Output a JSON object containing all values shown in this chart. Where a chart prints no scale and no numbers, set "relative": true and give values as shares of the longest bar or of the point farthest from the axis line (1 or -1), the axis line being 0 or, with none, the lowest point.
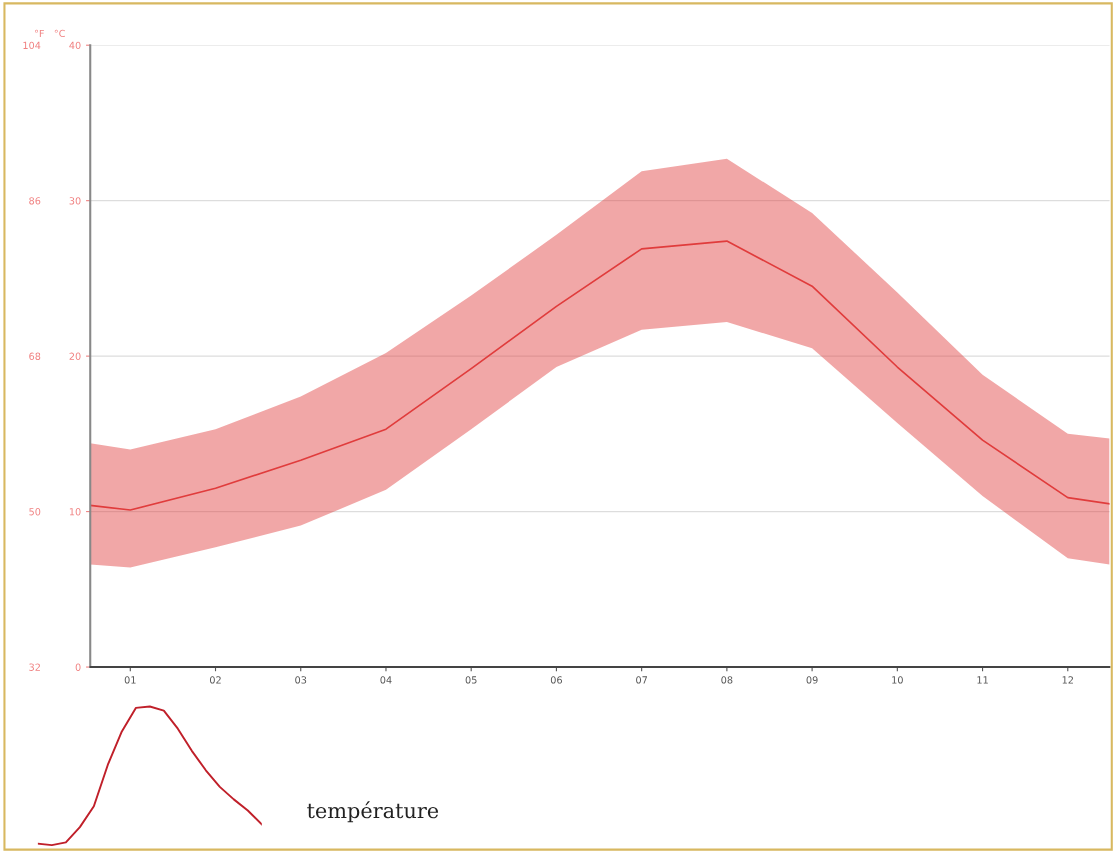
{
  "chart_data": [
    {
      "type": "line",
      "x": [
        0.53,
        1,
        2,
        3,
        4,
        5,
        6,
        7,
        8,
        9,
        10,
        11,
        12,
        12.49
      ],
      "series": [
        {
          "color": "#e03c3c",
          "values": [
            10.4,
            10.1,
            11.5,
            13.3,
            15.3,
            19.2,
            23.2,
            26.9,
            27.4,
            24.5,
            19.3,
            14.6,
            10.9,
            10.5
          ],
          "lower": [
            6.6,
            6.4,
            7.7,
            9.1,
            11.4,
            15.3,
            19.3,
            21.7,
            22.2,
            20.5,
            15.7,
            11.0,
            7.0,
            6.6
          ],
          "upper": [
            14.4,
            14.0,
            15.3,
            17.4,
            20.2,
            23.9,
            27.8,
            31.9,
            32.7,
            29.2,
            24.1,
            18.8,
            15.0,
            14.7
          ]
        }
      ],
      "xlim": [
        0.53,
        12.49
      ],
      "xticks": [
        {
          "value": 1,
          "label": "01"
        },
        {
          "value": 2,
          "label": "02"
        },
        {
          "value": 3,
          "label": "03"
        },
        {
          "value": 4,
          "label": "04"
        },
        {
          "value": 5,
          "label": "05"
        },
        {
          "value": 6,
          "label": "06"
        },
        {
          "value": 7,
          "label": "07"
        },
        {
          "value": 8,
          "label": "08"
        },
        {
          "value": 9,
          "label": "09"
        },
        {
          "value": 10,
          "label": "10"
        },
        {
          "value": 11,
          "label": "11"
        },
        {
          "value": 12,
          "label": "12"
        }
      ],
      "ylim": [
        0,
        40
      ],
      "yticks": [
        0,
        10,
        20,
        30,
        40
      ],
      "ylabel": "°C",
      "y2lim": [
        32,
        104
      ],
      "y2ticks": [
        32,
        50,
        68,
        86,
        104
      ],
      "y2label": "°F",
      "grid": "y",
      "marker": "none",
      "line_style": "solid"
    },
    {
      "type": "line",
      "relative": true,
      "tick_labels": false,
      "categories": [
        null,
        null,
        null,
        null,
        null,
        null,
        null,
        null,
        null,
        null,
        null,
        null,
        null,
        null,
        null,
        null,
        null
      ],
      "series": [
        {
          "name": "température",
          "color": "#c0202a",
          "values": [
            0.01,
            0,
            0.02,
            0.13,
            0.28,
            0.58,
            0.82,
            0.99,
            1.0,
            0.97,
            0.84,
            0.68,
            0.54,
            0.42,
            0.33,
            0.25,
            0.15
          ]
        }
      ]
    }
  ]
}
